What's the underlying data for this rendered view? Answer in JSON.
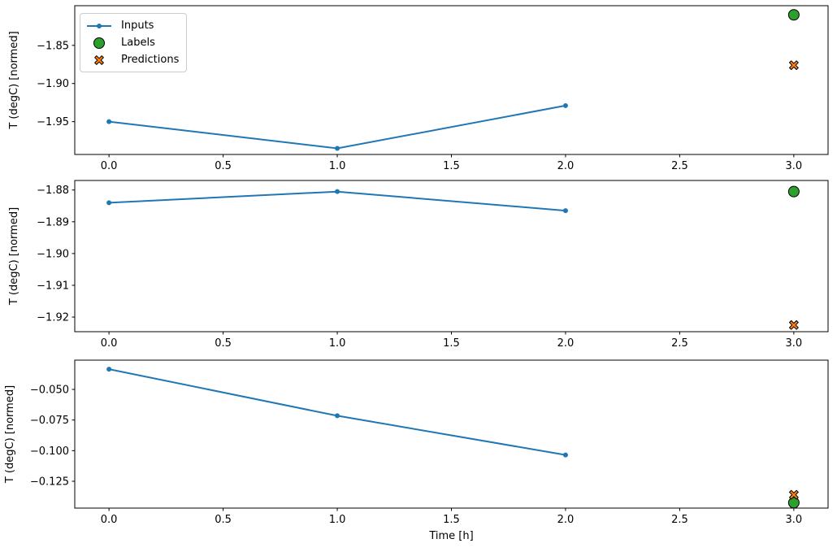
{
  "figure": {
    "background": "#ffffff",
    "axis_color": "#000000",
    "legend": {
      "position": "upper-left-of-first-subplot",
      "items": [
        {
          "label": "Inputs",
          "marker": "line-dot",
          "color": "#1f77b4",
          "edge": "#000000"
        },
        {
          "label": "Labels",
          "marker": "circle",
          "color": "#2ca02c",
          "edge": "#000000"
        },
        {
          "label": "Predictions",
          "marker": "x",
          "color": "#ff7f0e",
          "edge": "#000000"
        }
      ]
    },
    "xlabel": "Time [h]",
    "xticks": [
      {
        "v": 0.0,
        "label": "0.0"
      },
      {
        "v": 0.5,
        "label": "0.5"
      },
      {
        "v": 1.0,
        "label": "1.0"
      },
      {
        "v": 1.5,
        "label": "1.5"
      },
      {
        "v": 2.0,
        "label": "2.0"
      },
      {
        "v": 2.5,
        "label": "2.5"
      },
      {
        "v": 3.0,
        "label": "3.0"
      }
    ]
  },
  "chart_data": [
    {
      "type": "line",
      "title": "",
      "xlabel": "",
      "ylabel": "T (degC) [normed]",
      "xlim": [
        -0.15,
        3.15
      ],
      "ylim": [
        -1.993,
        -1.798
      ],
      "grid": false,
      "legend_visible": true,
      "yticks": [
        {
          "v": -1.85,
          "label": "−1.85"
        },
        {
          "v": -1.9,
          "label": "−1.90"
        },
        {
          "v": -1.95,
          "label": "−1.95"
        }
      ],
      "series": [
        {
          "name": "Inputs",
          "kind": "line",
          "marker": "dot",
          "color": "#1f77b4",
          "x": [
            0,
            1,
            2
          ],
          "y": [
            -1.95,
            -1.985,
            -1.929
          ]
        },
        {
          "name": "Labels",
          "kind": "scatter",
          "marker": "circle",
          "color": "#2ca02c",
          "edge": "#000000",
          "x": [
            3
          ],
          "y": [
            -1.81
          ]
        },
        {
          "name": "Predictions",
          "kind": "scatter",
          "marker": "x",
          "color": "#ff7f0e",
          "edge": "#000000",
          "x": [
            3
          ],
          "y": [
            -1.876
          ]
        }
      ]
    },
    {
      "type": "line",
      "title": "",
      "xlabel": "",
      "ylabel": "T (degC) [normed]",
      "xlim": [
        -0.15,
        3.15
      ],
      "ylim": [
        -1.9246,
        -1.877
      ],
      "grid": false,
      "legend_visible": false,
      "yticks": [
        {
          "v": -1.88,
          "label": "−1.88"
        },
        {
          "v": -1.89,
          "label": "−1.89"
        },
        {
          "v": -1.9,
          "label": "−1.90"
        },
        {
          "v": -1.91,
          "label": "−1.91"
        },
        {
          "v": -1.92,
          "label": "−1.92"
        }
      ],
      "series": [
        {
          "name": "Inputs",
          "kind": "line",
          "marker": "dot",
          "color": "#1f77b4",
          "x": [
            0,
            1,
            2
          ],
          "y": [
            -1.884,
            -1.8805,
            -1.8865
          ]
        },
        {
          "name": "Labels",
          "kind": "scatter",
          "marker": "circle",
          "color": "#2ca02c",
          "edge": "#000000",
          "x": [
            3
          ],
          "y": [
            -1.8805
          ]
        },
        {
          "name": "Predictions",
          "kind": "scatter",
          "marker": "x",
          "color": "#ff7f0e",
          "edge": "#000000",
          "x": [
            3
          ],
          "y": [
            -1.9225
          ]
        }
      ]
    },
    {
      "type": "line",
      "title": "",
      "xlabel": "Time [h]",
      "ylabel": "T (degC) [normed]",
      "xlim": [
        -0.15,
        3.15
      ],
      "ylim": [
        -0.1469,
        -0.0261
      ],
      "grid": false,
      "legend_visible": false,
      "yticks": [
        {
          "v": -0.05,
          "label": "−0.050"
        },
        {
          "v": -0.075,
          "label": "−0.075"
        },
        {
          "v": -0.1,
          "label": "−0.100"
        },
        {
          "v": -0.125,
          "label": "−0.125"
        }
      ],
      "series": [
        {
          "name": "Inputs",
          "kind": "line",
          "marker": "dot",
          "color": "#1f77b4",
          "x": [
            0,
            1,
            2
          ],
          "y": [
            -0.0335,
            -0.0715,
            -0.1035
          ]
        },
        {
          "name": "Labels",
          "kind": "scatter",
          "marker": "circle",
          "color": "#2ca02c",
          "edge": "#000000",
          "x": [
            3
          ],
          "y": [
            -0.1425
          ]
        },
        {
          "name": "Predictions",
          "kind": "scatter",
          "marker": "x",
          "color": "#ff7f0e",
          "edge": "#000000",
          "x": [
            3
          ],
          "y": [
            -0.136
          ]
        }
      ]
    }
  ]
}
